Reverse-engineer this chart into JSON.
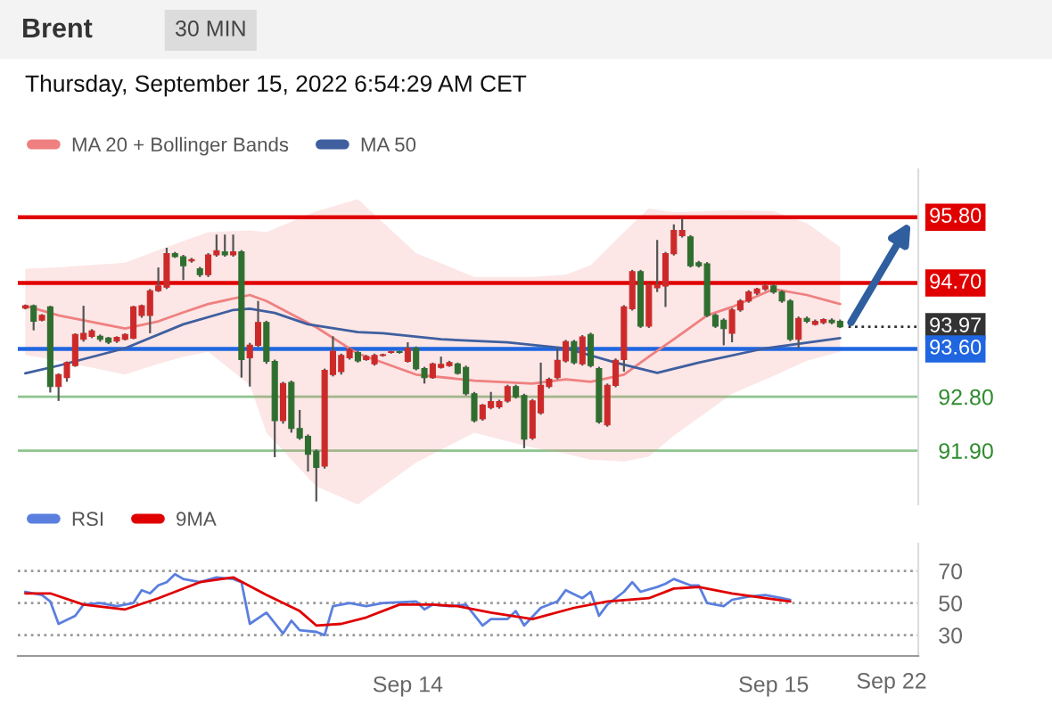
{
  "chart_data": [
    {
      "type": "candlestick",
      "title": "Brent",
      "subtitle": "Thursday, September 15, 2022 6:54:29 AM CET",
      "annotations": [
        "30 MIN"
      ],
      "categories": [
        null,
        null,
        null,
        null,
        null,
        null,
        null,
        null,
        null,
        null,
        null,
        null,
        null,
        null,
        null,
        null,
        null,
        null,
        null,
        null,
        null,
        null,
        null,
        null,
        null,
        null,
        null,
        null,
        null,
        null,
        null,
        null,
        null,
        null,
        null,
        null,
        null,
        null,
        null,
        null,
        null,
        null,
        null,
        null,
        null,
        null,
        null,
        null,
        null,
        null,
        null,
        null,
        null,
        null,
        null,
        null,
        null,
        null,
        null,
        null,
        null,
        null,
        null,
        null,
        null,
        null,
        null,
        null,
        null,
        null,
        null,
        null,
        null,
        null,
        null,
        null,
        null,
        null,
        null,
        null,
        null,
        null,
        null,
        null,
        null,
        null,
        null,
        null,
        null,
        null,
        null,
        null,
        null,
        null,
        null,
        null,
        null,
        null,
        null
      ],
      "ohlc": [
        [
          94.28,
          94.34,
          94.26,
          94.32
        ],
        [
          94.32,
          94.34,
          93.91,
          94.06
        ],
        [
          94.08,
          94.18,
          94.06,
          94.16
        ],
        [
          94.3,
          94.32,
          92.87,
          92.97
        ],
        [
          92.97,
          93.19,
          92.73,
          93.17
        ],
        [
          93.12,
          93.39,
          93.05,
          93.37
        ],
        [
          93.32,
          93.86,
          93.3,
          93.84
        ],
        [
          93.76,
          94.32,
          93.72,
          93.86
        ],
        [
          93.81,
          93.93,
          93.78,
          93.9
        ],
        [
          93.81,
          93.84,
          93.72,
          93.76
        ],
        [
          93.78,
          93.8,
          93.68,
          93.71
        ],
        [
          93.73,
          93.81,
          93.7,
          93.79
        ],
        [
          93.76,
          93.86,
          93.74,
          93.84
        ],
        [
          93.78,
          94.32,
          93.76,
          94.3
        ],
        [
          94.16,
          94.34,
          94.12,
          94.32
        ],
        [
          94.16,
          94.6,
          93.86,
          94.57
        ],
        [
          94.57,
          94.96,
          94.55,
          94.65
        ],
        [
          94.63,
          95.29,
          94.6,
          95.19
        ],
        [
          95.19,
          95.22,
          95.12,
          95.14
        ],
        [
          95.14,
          95.17,
          94.75,
          94.99
        ],
        [
          95.07,
          95.12,
          95.04,
          95.09
        ],
        [
          94.94,
          94.97,
          94.8,
          94.84
        ],
        [
          94.84,
          95.2,
          94.8,
          95.17
        ],
        [
          95.17,
          95.51,
          95.14,
          95.24
        ],
        [
          95.22,
          95.51,
          95.14,
          95.17
        ],
        [
          95.17,
          95.51,
          95.14,
          95.22
        ],
        [
          95.22,
          95.25,
          93.12,
          93.42
        ],
        [
          93.45,
          93.7,
          92.97,
          93.66
        ],
        [
          93.66,
          94.4,
          93.63,
          94.04
        ],
        [
          94.04,
          94.07,
          93.35,
          93.39
        ],
        [
          93.39,
          93.42,
          91.79,
          92.4
        ],
        [
          92.4,
          93.05,
          92.35,
          93.02
        ],
        [
          93.04,
          93.07,
          92.2,
          92.27
        ],
        [
          92.27,
          92.58,
          92.08,
          92.11
        ],
        [
          92.14,
          92.17,
          91.55,
          91.84
        ],
        [
          91.89,
          91.92,
          91.05,
          91.62
        ],
        [
          91.64,
          93.27,
          91.6,
          93.24
        ],
        [
          93.17,
          93.81,
          93.14,
          93.56
        ],
        [
          93.22,
          93.52,
          93.17,
          93.49
        ],
        [
          93.45,
          93.62,
          93.42,
          93.59
        ],
        [
          93.54,
          93.57,
          93.37,
          93.4
        ],
        [
          93.42,
          93.5,
          93.4,
          93.47
        ],
        [
          93.35,
          93.52,
          93.32,
          93.49
        ],
        [
          93.49,
          93.52,
          93.47,
          93.5
        ],
        [
          93.54,
          93.57,
          93.52,
          93.55
        ],
        [
          93.55,
          93.57,
          93.52,
          93.54
        ],
        [
          93.39,
          93.71,
          93.37,
          93.61
        ],
        [
          93.61,
          93.64,
          93.24,
          93.27
        ],
        [
          93.27,
          93.3,
          93.02,
          93.12
        ],
        [
          93.12,
          93.37,
          93.1,
          93.35
        ],
        [
          93.29,
          93.47,
          93.27,
          93.34
        ],
        [
          93.32,
          93.4,
          93.3,
          93.37
        ],
        [
          93.35,
          93.37,
          93.17,
          93.19
        ],
        [
          93.29,
          93.32,
          92.82,
          92.85
        ],
        [
          92.85,
          92.88,
          92.37,
          92.4
        ],
        [
          92.43,
          92.68,
          92.4,
          92.66
        ],
        [
          92.62,
          92.88,
          92.59,
          92.72
        ],
        [
          92.63,
          92.75,
          92.6,
          92.72
        ],
        [
          92.73,
          93.0,
          92.7,
          92.97
        ],
        [
          92.97,
          93.0,
          92.77,
          92.8
        ],
        [
          92.82,
          92.85,
          91.94,
          92.09
        ],
        [
          92.11,
          92.76,
          92.08,
          92.73
        ],
        [
          92.53,
          93.37,
          92.5,
          92.99
        ],
        [
          92.97,
          93.12,
          92.94,
          93.09
        ],
        [
          93.12,
          93.61,
          93.09,
          93.41
        ],
        [
          93.4,
          93.75,
          93.37,
          93.72
        ],
        [
          93.72,
          93.75,
          93.34,
          93.37
        ],
        [
          93.35,
          93.83,
          93.32,
          93.8
        ],
        [
          93.84,
          93.87,
          93.29,
          93.32
        ],
        [
          93.27,
          93.3,
          92.35,
          92.38
        ],
        [
          92.33,
          93.02,
          92.3,
          92.99
        ],
        [
          92.99,
          93.44,
          92.96,
          93.41
        ],
        [
          93.42,
          94.33,
          93.22,
          94.3
        ],
        [
          94.27,
          94.92,
          94.24,
          94.89
        ],
        [
          94.89,
          94.92,
          93.95,
          93.98
        ],
        [
          93.98,
          94.7,
          93.95,
          94.67
        ],
        [
          94.62,
          95.42,
          94.55,
          94.67
        ],
        [
          94.65,
          95.22,
          94.3,
          95.19
        ],
        [
          95.19,
          95.68,
          95.16,
          95.58
        ],
        [
          95.49,
          95.78,
          95.46,
          95.58
        ],
        [
          95.47,
          95.5,
          94.96,
          94.99
        ],
        [
          95.04,
          95.07,
          94.96,
          94.99
        ],
        [
          95.02,
          95.05,
          94.13,
          94.16
        ],
        [
          94.16,
          94.19,
          93.95,
          93.98
        ],
        [
          94.08,
          94.11,
          93.66,
          93.94
        ],
        [
          93.86,
          94.28,
          93.71,
          94.25
        ],
        [
          94.25,
          94.43,
          94.22,
          94.4
        ],
        [
          94.4,
          94.58,
          94.37,
          94.55
        ],
        [
          94.53,
          94.62,
          94.5,
          94.6
        ],
        [
          94.6,
          94.68,
          94.57,
          94.65
        ],
        [
          94.65,
          94.68,
          94.52,
          94.55
        ],
        [
          94.55,
          94.58,
          94.37,
          94.4
        ],
        [
          94.4,
          94.43,
          93.73,
          93.76
        ],
        [
          93.76,
          94.14,
          93.61,
          94.11
        ],
        [
          94.11,
          94.14,
          94.03,
          94.06
        ],
        [
          94.01,
          94.09,
          93.99,
          94.06
        ],
        [
          94.04,
          94.11,
          94.01,
          94.09
        ],
        [
          94.08,
          94.11,
          94.01,
          94.04
        ],
        [
          94.06,
          94.09,
          93.95,
          93.97
        ]
      ],
      "series": [
        {
          "name": "MA 20 + Bollinger Bands",
          "type": "line",
          "color": "#f08080",
          "values": [
            94.32,
            null,
            null,
            null,
            94.16,
            null,
            null,
            null,
            null,
            null,
            null,
            null,
            93.94,
            null,
            null,
            null,
            94.06,
            null,
            null,
            94.21,
            null,
            null,
            94.35,
            null,
            null,
            null,
            null,
            94.5,
            null,
            94.4,
            null,
            null,
            null,
            null,
            null,
            93.96,
            null,
            null,
            null,
            null,
            93.52,
            null,
            null,
            null,
            null,
            null,
            null,
            93.17,
            null,
            null,
            null,
            null,
            null,
            null,
            93.07,
            null,
            null,
            null,
            null,
            null,
            null,
            93.02,
            null,
            null,
            null,
            93.09,
            null,
            null,
            93.05,
            null,
            null,
            null,
            93.17,
            null,
            null,
            93.47,
            null,
            null,
            93.76,
            null,
            null,
            null,
            94.16,
            null,
            null,
            94.3,
            null,
            null,
            null,
            null,
            94.6,
            null,
            null,
            null,
            94.5,
            null,
            null,
            null,
            94.35
          ],
          "upper": [
            94.94,
            null,
            null,
            null,
            94.96,
            null,
            null,
            null,
            null,
            null,
            null,
            null,
            95.04,
            null,
            null,
            null,
            95.25,
            null,
            null,
            95.4,
            null,
            null,
            95.55,
            null,
            null,
            null,
            null,
            95.58,
            null,
            95.55,
            null,
            null,
            null,
            null,
            null,
            95.9,
            null,
            null,
            null,
            null,
            96.1,
            null,
            null,
            null,
            null,
            null,
            null,
            95.2,
            null,
            null,
            null,
            null,
            null,
            null,
            94.8,
            null,
            null,
            null,
            null,
            null,
            null,
            94.8,
            null,
            null,
            null,
            94.84,
            null,
            null,
            95.0,
            null,
            null,
            null,
            95.55,
            null,
            null,
            95.95,
            null,
            null,
            95.88,
            null,
            null,
            null,
            95.9,
            null,
            null,
            95.92,
            null,
            null,
            null,
            null,
            95.9,
            null,
            null,
            null,
            95.7,
            null,
            null,
            null,
            95.3
          ],
          "lower": [
            93.5,
            null,
            null,
            null,
            93.4,
            null,
            null,
            null,
            null,
            null,
            null,
            null,
            93.17,
            null,
            null,
            null,
            93.35,
            null,
            null,
            93.47,
            null,
            null,
            93.55,
            null,
            null,
            null,
            null,
            93.0,
            null,
            92.2,
            null,
            null,
            null,
            null,
            null,
            91.3,
            null,
            null,
            null,
            null,
            91.0,
            null,
            null,
            null,
            null,
            null,
            null,
            91.7,
            null,
            null,
            null,
            null,
            null,
            null,
            92.2,
            null,
            null,
            null,
            null,
            null,
            null,
            91.95,
            null,
            null,
            null,
            91.85,
            null,
            null,
            91.75,
            null,
            null,
            null,
            91.72,
            null,
            null,
            91.8,
            null,
            null,
            92.15,
            null,
            null,
            null,
            92.55,
            null,
            null,
            92.85,
            null,
            null,
            null,
            null,
            93.15,
            null,
            null,
            null,
            93.4,
            null,
            null,
            null,
            93.55
          ]
        },
        {
          "name": "MA 50",
          "type": "line",
          "color": "#3f5f9f",
          "values": [
            93.19,
            null,
            null,
            null,
            93.32,
            null,
            null,
            null,
            null,
            null,
            null,
            null,
            93.61,
            null,
            null,
            null,
            null,
            null,
            null,
            94.01,
            null,
            null,
            null,
            null,
            null,
            94.25,
            null,
            94.27,
            null,
            null,
            94.2,
            null,
            null,
            null,
            94.01,
            null,
            null,
            null,
            null,
            null,
            93.88,
            null,
            null,
            93.86,
            null,
            null,
            null,
            null,
            null,
            null,
            93.76,
            null,
            null,
            null,
            null,
            null,
            null,
            null,
            93.71,
            null,
            null,
            null,
            null,
            null,
            null,
            93.61,
            null,
            null,
            null,
            null,
            null,
            93.37,
            null,
            null,
            null,
            null,
            93.2,
            null,
            null,
            null,
            null,
            93.37,
            null,
            null,
            null,
            null,
            null,
            null,
            null,
            93.61,
            null,
            null,
            null,
            null,
            null,
            null,
            null,
            null,
            93.78
          ]
        }
      ],
      "ref_lines": [
        {
          "axis": "y",
          "value": 95.8,
          "label": "95.80",
          "color": "#e00000",
          "line_style": "solid"
        },
        {
          "axis": "y",
          "value": 94.7,
          "label": "94.70",
          "color": "#e00000",
          "line_style": "solid"
        },
        {
          "axis": "y",
          "value": 93.97,
          "label": "93.97",
          "color": "#333333",
          "line_style": "dotted"
        },
        {
          "axis": "y",
          "value": 93.6,
          "label": "93.60",
          "color": "#1f66e0",
          "line_style": "solid"
        }
      ],
      "ylim": [
        91.0,
        96.6
      ],
      "yticks": [
        {
          "value": 91.9,
          "label": "91.90"
        },
        {
          "value": 92.8,
          "label": "92.80"
        }
      ],
      "grid": "y",
      "tick_labels": "y",
      "legend": "top left"
    },
    {
      "type": "line",
      "annotations": [
        "Sep 22"
      ],
      "categories": [
        null,
        null,
        null,
        null,
        null,
        null,
        null,
        null,
        null,
        null,
        null,
        null,
        null,
        null,
        null,
        null,
        null,
        null,
        null,
        null,
        null,
        null,
        null,
        null,
        null,
        null,
        null,
        null,
        null,
        null,
        null,
        null,
        null,
        null,
        null,
        null,
        null,
        null,
        null,
        null,
        null,
        null,
        null,
        null,
        null,
        null,
        "Sep 14",
        null,
        null,
        null,
        null,
        null,
        null,
        null,
        null,
        null,
        null,
        null,
        null,
        null,
        null,
        null,
        null,
        null,
        null,
        null,
        null,
        null,
        null,
        null,
        null,
        null,
        null,
        null,
        null,
        null,
        null,
        null,
        null,
        null,
        null,
        null,
        null,
        null,
        null,
        null,
        null,
        null,
        null,
        null,
        "Sep 15",
        null,
        null,
        null,
        null,
        null,
        null,
        null,
        null
      ],
      "series": [
        {
          "name": "RSI",
          "color": "#5b7fde",
          "values": [
            57,
            null,
            55,
            51,
            37,
            null,
            42,
            49,
            null,
            50,
            null,
            48,
            null,
            50,
            58,
            56,
            61,
            63,
            68,
            65,
            null,
            63,
            null,
            66,
            null,
            65,
            63,
            37,
            null,
            44,
            null,
            31,
            39,
            33,
            null,
            32,
            30,
            48,
            null,
            50,
            null,
            48,
            null,
            50,
            null,
            null,
            null,
            51,
            46,
            49,
            null,
            48,
            null,
            49,
            null,
            36,
            40,
            null,
            40,
            45,
            36,
            null,
            47,
            null,
            51,
            58,
            null,
            53,
            57,
            42,
            49,
            null,
            57,
            63,
            57,
            null,
            60,
            62,
            65,
            null,
            61,
            61,
            50,
            null,
            48,
            52,
            null,
            54,
            null,
            55,
            null,
            53,
            52,
            null,
            null,
            null,
            null,
            null,
            null
          ]
        },
        {
          "name": "9MA",
          "color": "#e00000",
          "values": [
            56,
            null,
            null,
            56,
            null,
            null,
            null,
            49,
            null,
            null,
            null,
            null,
            46,
            null,
            null,
            null,
            53,
            null,
            null,
            null,
            null,
            63,
            null,
            null,
            null,
            66,
            null,
            null,
            null,
            55,
            null,
            null,
            null,
            45,
            null,
            36,
            null,
            null,
            37,
            null,
            null,
            41,
            null,
            null,
            null,
            49,
            null,
            null,
            null,
            49,
            null,
            null,
            48,
            null,
            null,
            null,
            44,
            null,
            null,
            null,
            null,
            40,
            null,
            null,
            null,
            null,
            47,
            null,
            null,
            null,
            51,
            null,
            null,
            null,
            null,
            53,
            null,
            null,
            59,
            null,
            null,
            60,
            null,
            null,
            null,
            56,
            null,
            null,
            null,
            53,
            null,
            null,
            51,
            null,
            null,
            null,
            null,
            null,
            null
          ]
        }
      ],
      "ylim": [
        17,
        87
      ],
      "yticks": [
        30,
        50,
        70
      ],
      "grid": "y",
      "legend": "top left"
    }
  ]
}
